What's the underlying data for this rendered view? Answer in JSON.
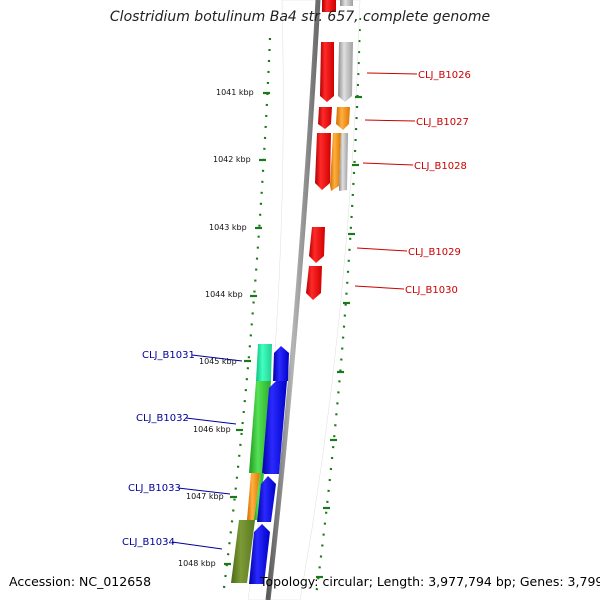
{
  "title": "Clostridium botulinum Ba4 str. 657, complete genome",
  "accession": "Accession: NC_012658",
  "summary": "Topology: circular; Length: 3,977,794 bp; Genes: 3,799",
  "colors": {
    "background": "#ffffff",
    "forward_label": "#cc0000",
    "reverse_label": "#000099",
    "tick": "#1a7a1a",
    "backbone": "#8a8a8a"
  },
  "ticks": [
    "1041 kbp",
    "1042 kbp",
    "1043 kbp",
    "1044 kbp",
    "1045 kbp",
    "1046 kbp",
    "1047 kbp",
    "1048 kbp"
  ],
  "forward_genes": [
    "CLJ_B1026",
    "CLJ_B1027",
    "CLJ_B1028",
    "CLJ_B1029",
    "CLJ_B1030"
  ],
  "reverse_genes": [
    "CLJ_B1031",
    "CLJ_B1032",
    "CLJ_B1033",
    "CLJ_B1034"
  ],
  "function_colors": [
    "#ff0000",
    "#a9a9a9",
    "#ff8c00",
    "#00ffaa",
    "#33cc33",
    "#0000ff",
    "#6b8e23"
  ]
}
